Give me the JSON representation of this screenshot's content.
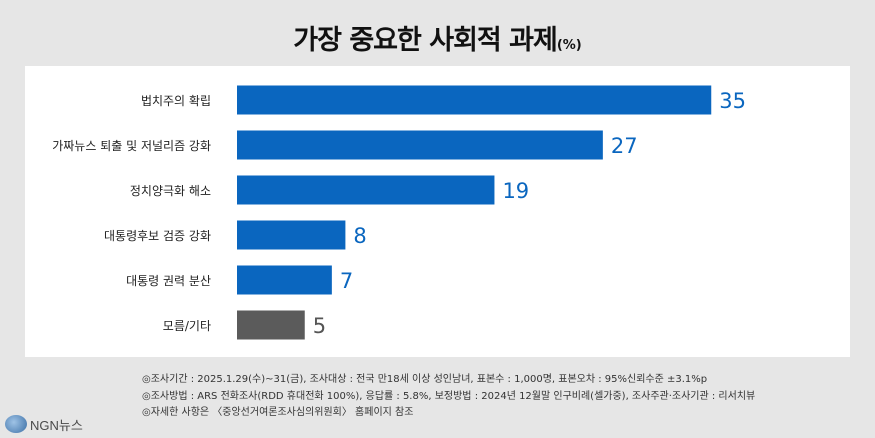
{
  "header": {
    "title": "가장 중요한 사회적 과제",
    "unit": "(%)"
  },
  "chart_data": {
    "type": "bar",
    "orientation": "horizontal",
    "categories": [
      "법치주의 확립",
      "가짜뉴스 퇴출 및 저널리즘 강화",
      "정치양극화 해소",
      "대통령후보 검증 강화",
      "대통령 권력 분산",
      "모름/기타"
    ],
    "values": [
      35,
      27,
      19,
      8,
      7,
      5
    ],
    "unit": "%",
    "xlim": [
      0,
      40
    ],
    "grid": false,
    "colors": {
      "bar": "#0a66bf",
      "other_bar": "#5b5b5b",
      "label": "#0a66bf",
      "other_label": "#555555"
    }
  },
  "notes": [
    "◎조사기간 : 2025.1.29(수)~31(금), 조사대상 : 전국 만18세 이상 성인남녀, 표본수 : 1,000명, 표본오차 : 95%신뢰수준 ±3.1%p",
    "◎조사방법 : ARS 전화조사(RDD 휴대전화 100%), 응답률 : 5.8%, 보정방법 : 2024년 12월말 인구비례(셀가중), 조사주관·조사기관 : 리서치뷰",
    "◎자세한 사항은 〈중앙선거여론조사심의위원회〉 홈페이지 참조"
  ],
  "logo": {
    "text": "NGN뉴스",
    "icon": "globe-icon"
  }
}
